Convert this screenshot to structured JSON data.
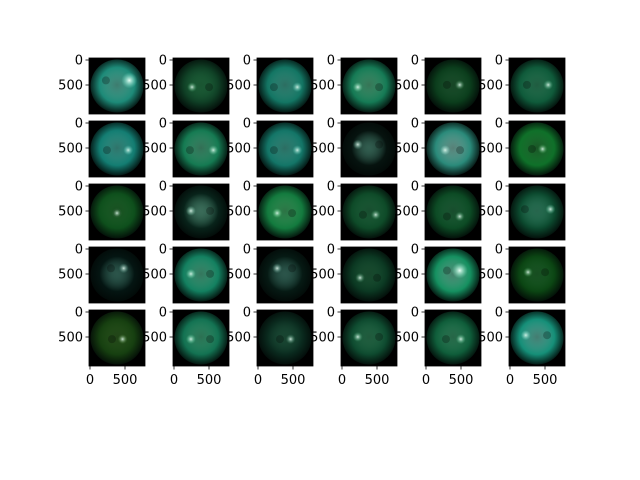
{
  "figure": {
    "rows": 5,
    "cols": 6,
    "y_tick_labels": [
      "0",
      "500"
    ],
    "x_tick_labels": [
      "0",
      "500"
    ]
  },
  "panels": [
    {
      "base": "#1d8a78",
      "glow": "#6fe0c8",
      "disc": [
        0.72,
        0.4
      ],
      "bright": true
    },
    {
      "base": "#0f3f25",
      "glow": "#2f9a5a",
      "disc": [
        0.34,
        0.52
      ],
      "bright": false
    },
    {
      "base": "#137563",
      "glow": "#4fc7b0",
      "disc": [
        0.72,
        0.52
      ],
      "bright": false
    },
    {
      "base": "#157a55",
      "glow": "#62d39c",
      "disc": [
        0.3,
        0.52
      ],
      "bright": false
    },
    {
      "base": "#0b3d1c",
      "glow": "#2a7c45",
      "disc": [
        0.62,
        0.48
      ],
      "bright": false
    },
    {
      "base": "#0f5a3a",
      "glow": "#3aa775",
      "disc": [
        0.7,
        0.48
      ],
      "bright": false
    },
    {
      "base": "#137d72",
      "glow": "#55d0bf",
      "disc": [
        0.7,
        0.52
      ],
      "bright": false
    },
    {
      "base": "#157a52",
      "glow": "#5cc99a",
      "disc": [
        0.72,
        0.52
      ],
      "bright": false
    },
    {
      "base": "#137567",
      "glow": "#4fc6b2",
      "disc": [
        0.72,
        0.52
      ],
      "bright": false
    },
    {
      "base": "#06130f",
      "glow": "#5aa88f",
      "disc": [
        0.3,
        0.42
      ],
      "bright": false
    },
    {
      "base": "#2a8a7a",
      "glow": "#9ee8d8",
      "disc": [
        0.36,
        0.52
      ],
      "bright": false
    },
    {
      "base": "#0f7029",
      "glow": "#2e9a45",
      "disc": [
        0.6,
        0.5
      ],
      "bright": false
    },
    {
      "base": "#0e4f1c",
      "glow": "#2c8c3c",
      "disc": [
        0.5,
        0.52
      ],
      "bright": false
    },
    {
      "base": "#08231a",
      "glow": "#6ac2a0",
      "disc": [
        0.32,
        0.48
      ],
      "bright": false
    },
    {
      "base": "#137a3e",
      "glow": "#4fcf7c",
      "disc": [
        0.36,
        0.52
      ],
      "bright": false
    },
    {
      "base": "#0e4a28",
      "glow": "#2c8c55",
      "disc": [
        0.62,
        0.55
      ],
      "bright": false
    },
    {
      "base": "#0c4a24",
      "glow": "#2c8a52",
      "disc": [
        0.62,
        0.58
      ],
      "bright": false
    },
    {
      "base": "#0c4a2f",
      "glow": "#45b78a",
      "disc": [
        0.74,
        0.45
      ],
      "bright": false
    },
    {
      "base": "#041512",
      "glow": "#4f9986",
      "disc": [
        0.62,
        0.38
      ],
      "bright": false
    },
    {
      "base": "#138060",
      "glow": "#5fd6a8",
      "disc": [
        0.32,
        0.48
      ],
      "bright": false
    },
    {
      "base": "#061a14",
      "glow": "#4f9986",
      "disc": [
        0.36,
        0.38
      ],
      "bright": false
    },
    {
      "base": "#0b3822",
      "glow": "#2a7d4e",
      "disc": [
        0.34,
        0.55
      ],
      "bright": false
    },
    {
      "base": "#159060",
      "glow": "#7be6c0",
      "disc": [
        0.62,
        0.42
      ],
      "bright": true
    },
    {
      "base": "#0b4513",
      "glow": "#2a8a3c",
      "disc": [
        0.34,
        0.45
      ],
      "bright": false
    },
    {
      "base": "#163f10",
      "glow": "#3c7a2a",
      "disc": [
        0.6,
        0.52
      ],
      "bright": false
    },
    {
      "base": "#137252",
      "glow": "#4fcb95",
      "disc": [
        0.32,
        0.52
      ],
      "bright": false
    },
    {
      "base": "#0a2a1e",
      "glow": "#2d7a58",
      "disc": [
        0.6,
        0.52
      ],
      "bright": false
    },
    {
      "base": "#0e4a2f",
      "glow": "#3aa06c",
      "disc": [
        0.3,
        0.48
      ],
      "bright": false
    },
    {
      "base": "#0f5d3a",
      "glow": "#45b780",
      "disc": [
        0.64,
        0.52
      ],
      "bright": false
    },
    {
      "base": "#158f78",
      "glow": "#7ae0cc",
      "disc": [
        0.3,
        0.45
      ],
      "bright": false
    }
  ]
}
